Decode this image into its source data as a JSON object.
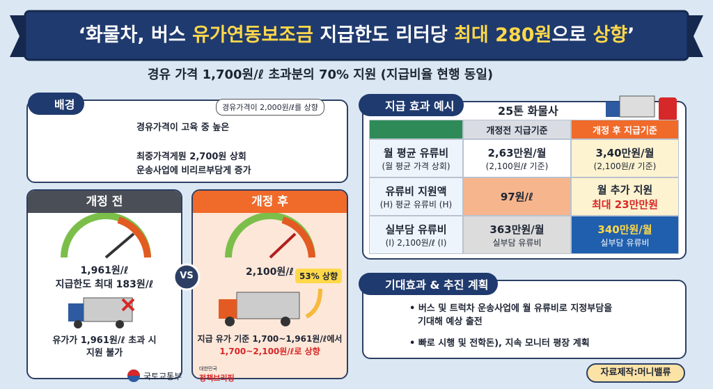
{
  "header": {
    "title_parts": [
      "‘화물차, 버스 ",
      "유가연동보조금",
      " 지급한도 리터당 ",
      "최대 280원",
      "으로 ",
      "상향",
      "’"
    ],
    "subtitle": "경유 가격 1,700원/ℓ 초과분의 70% 지원 (지급비율 현행 동일)"
  },
  "background": {
    "heading": "배경",
    "bubble": "경유가격이 2,000원/ℓ를 상향",
    "lines": [
      "경유가격이 고육 중 높은",
      "최중가격게뭔 2,700원 상회",
      "운송사업에 비리르부담게 증가"
    ]
  },
  "before": {
    "heading": "개정 전",
    "gauge_label": "1,961원/ℓ",
    "limit": "지급한도 최대 183원/ℓ",
    "notes": [
      "유가가 1,961원/ℓ 초과 시",
      "지원 불가"
    ]
  },
  "vs": "VS",
  "after": {
    "heading": "개정 후",
    "gauge_label": "2,100원/ℓ",
    "badge": "53% 상향",
    "notes": [
      "지급 유가 기준 1,700~1,961원/ℓ에서",
      "1,700~2,100원/ℓ로 상향"
    ]
  },
  "example": {
    "heading": "지급 효과 예시",
    "vehicle": "25톤 화물사",
    "table": {
      "columns": [
        "개정전 지급기준",
        "개정 후 지급기준"
      ],
      "rows": [
        {
          "label": [
            "월 평균 유류비",
            "(월 평균 가격 상회)"
          ],
          "before": [
            "2,63만원/월",
            "(2,100원/ℓ 기준)"
          ],
          "after": [
            "3,40만원/월",
            "(2,100원/ℓ 기준)"
          ]
        },
        {
          "label": [
            "유류비 지원액",
            "(H) 평균 유류비 (H)"
          ],
          "before": [
            "97원/ℓ"
          ],
          "after": [
            "월 추가 지원",
            "최대 23만만원"
          ]
        },
        {
          "label": [
            "실부담 유류비",
            "(Ⅰ) 2,100원/ℓ (Ⅰ)"
          ],
          "before": [
            "363만원/월",
            "실부담 유류비"
          ],
          "after": [
            "340만원/월",
            "실부담 유류비"
          ]
        }
      ]
    }
  },
  "plan": {
    "heading": "기대효과 & 추진 계획",
    "items": [
      [
        "• 버스 및 트럭차 운송사업에 월 유류비로 지정부담을",
        "기대해 예상 출전"
      ],
      [
        "• 빠로 시행 및 전학돈), 지속 모니터 평장 계획"
      ]
    ]
  },
  "footer": {
    "ministry": "국토교통부",
    "brand_small": "대한민국",
    "brand": "정책브리핑",
    "credit": "자료제작:머니밸류"
  }
}
